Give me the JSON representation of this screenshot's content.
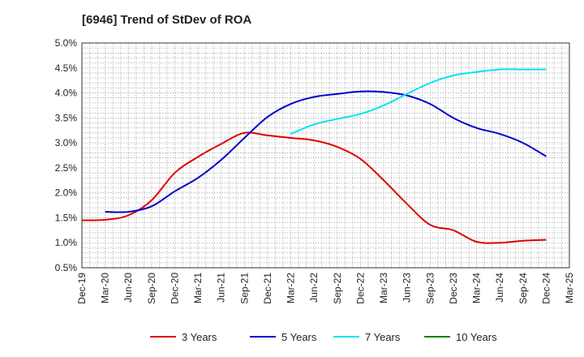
{
  "chart_data": {
    "type": "line",
    "title": "[6946]  Trend of StDev of ROA",
    "xlabel": "",
    "ylabel": "",
    "ylim": [
      0.5,
      5.0
    ],
    "y_ticks": [
      "0.5%",
      "1.0%",
      "1.5%",
      "2.0%",
      "2.5%",
      "3.0%",
      "3.5%",
      "4.0%",
      "4.5%",
      "5.0%"
    ],
    "x_ticks": [
      "Dec-19",
      "Mar-20",
      "Jun-20",
      "Sep-20",
      "Dec-20",
      "Mar-21",
      "Jun-21",
      "Sep-21",
      "Dec-21",
      "Mar-22",
      "Jun-22",
      "Sep-22",
      "Dec-22",
      "Mar-23",
      "Jun-23",
      "Sep-23",
      "Dec-23",
      "Mar-24",
      "Jun-24",
      "Sep-24",
      "Dec-24",
      "Mar-25"
    ],
    "grid": true,
    "legend_position": "bottom",
    "series": [
      {
        "name": "3 Years",
        "color": "#dd0000",
        "values": [
          1.45,
          1.46,
          1.55,
          1.85,
          2.4,
          2.72,
          2.98,
          3.2,
          3.15,
          3.1,
          3.05,
          2.92,
          2.68,
          2.25,
          1.78,
          1.36,
          1.25,
          1.02,
          1.0,
          1.04,
          1.06,
          null
        ]
      },
      {
        "name": "5 Years",
        "color": "#0000cc",
        "values": [
          null,
          1.62,
          1.62,
          1.73,
          2.03,
          2.3,
          2.66,
          3.1,
          3.52,
          3.78,
          3.92,
          3.98,
          4.03,
          4.02,
          3.95,
          3.78,
          3.5,
          3.3,
          3.18,
          3.0,
          2.73,
          null
        ]
      },
      {
        "name": "7 Years",
        "color": "#00e5ee",
        "values": [
          null,
          null,
          null,
          null,
          null,
          null,
          null,
          null,
          null,
          3.18,
          3.37,
          3.48,
          3.58,
          3.75,
          3.98,
          4.2,
          4.35,
          4.42,
          4.47,
          4.47,
          4.47,
          null
        ]
      },
      {
        "name": "10 Years",
        "color": "#008000",
        "values": [
          null,
          null,
          null,
          null,
          null,
          null,
          null,
          null,
          null,
          null,
          null,
          null,
          null,
          null,
          null,
          null,
          null,
          null,
          null,
          null,
          null,
          null
        ]
      }
    ]
  }
}
